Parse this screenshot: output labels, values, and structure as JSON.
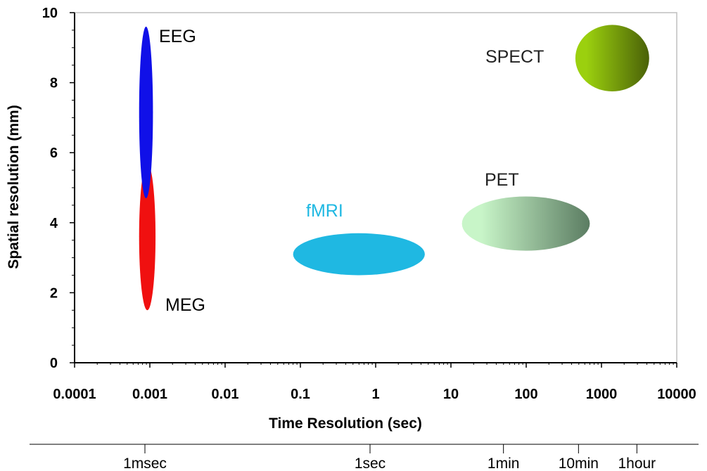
{
  "chart_data": {
    "type": "scatter",
    "title": "",
    "xlabel": "Time Resolution (sec)",
    "ylabel": "Spatial resolution (mm)",
    "xscale": "log",
    "xlim": [
      0.0001,
      10000
    ],
    "ylim": [
      0,
      10
    ],
    "grid": false,
    "x_ticks": [
      {
        "value": 0.0001,
        "label": "0.0001"
      },
      {
        "value": 0.001,
        "label": "0.001"
      },
      {
        "value": 0.01,
        "label": "0.01"
      },
      {
        "value": 0.1,
        "label": "0.1"
      },
      {
        "value": 1,
        "label": "1"
      },
      {
        "value": 10,
        "label": "10"
      },
      {
        "value": 100,
        "label": "100"
      },
      {
        "value": 1000,
        "label": "1000"
      },
      {
        "value": 10000,
        "label": "10000"
      }
    ],
    "y_ticks": [
      {
        "value": 0,
        "label": "0"
      },
      {
        "value": 2,
        "label": "2"
      },
      {
        "value": 4,
        "label": "4"
      },
      {
        "value": 6,
        "label": "6"
      },
      {
        "value": 8,
        "label": "8"
      },
      {
        "value": 10,
        "label": "10"
      }
    ],
    "regions": [
      {
        "name": "MEG",
        "x_min": 0.00072,
        "x_max": 0.00119,
        "y_min": 1.5,
        "y_max": 5.7,
        "color": "#f01010"
      },
      {
        "name": "EEG",
        "x_min": 0.00072,
        "x_max": 0.0011,
        "y_min": 4.7,
        "y_max": 9.6,
        "color": "#1010e8"
      },
      {
        "name": "fMRI",
        "x_min": 0.08,
        "x_max": 4.5,
        "y_min": 2.5,
        "y_max": 3.7,
        "color": "#1fb8e2"
      },
      {
        "name": "PET",
        "x_min": 14,
        "x_max": 700,
        "y_min": 3.2,
        "y_max": 4.75,
        "color_start": "#c8f5c8",
        "color_end": "#5b7c62"
      },
      {
        "name": "SPECT",
        "x_min": 450,
        "x_max": 4300,
        "y_min": 7.75,
        "y_max": 9.65,
        "color_start": "#9bd00e",
        "color_end": "#4a6108"
      }
    ],
    "time_scale": {
      "labels": [
        {
          "label": "1msec",
          "seconds": 0.001
        },
        {
          "label": "1sec",
          "seconds": 1
        },
        {
          "label": "1min",
          "seconds": 60
        },
        {
          "label": "10min",
          "seconds": 600
        },
        {
          "label": "1hour",
          "seconds": 3600
        }
      ]
    },
    "label_colors": {
      "EEG": "#000000",
      "MEG": "#000000",
      "fMRI": "#1fb8e2",
      "PET": "#222222",
      "SPECT": "#222222"
    }
  }
}
